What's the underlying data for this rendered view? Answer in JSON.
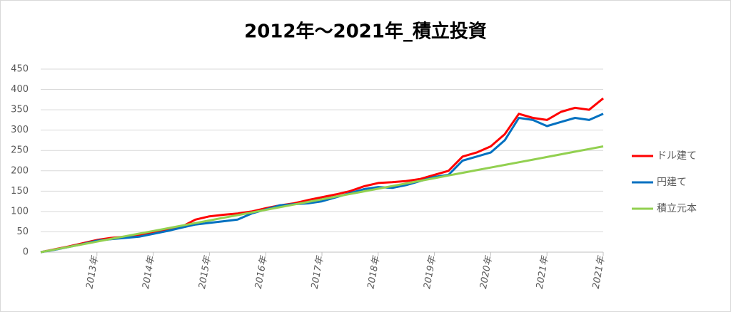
{
  "chart_data": {
    "type": "line",
    "title": "2012年～2021年_積立投資",
    "categories": [
      null,
      null,
      null,
      null,
      "2013年",
      null,
      null,
      null,
      "2014年",
      null,
      null,
      null,
      "2015年",
      null,
      null,
      null,
      "2016年",
      null,
      null,
      null,
      "2017年",
      null,
      null,
      null,
      "2018年",
      null,
      null,
      null,
      "2019年",
      null,
      null,
      null,
      "2020年",
      null,
      null,
      null,
      "2021年",
      null,
      null,
      null,
      "2021年"
    ],
    "series": [
      {
        "name": "ドル建て",
        "color": "#ff0000",
        "values": [
          0,
          7,
          14,
          22,
          30,
          35,
          38,
          42,
          48,
          55,
          62,
          80,
          88,
          92,
          95,
          100,
          108,
          115,
          120,
          128,
          135,
          142,
          150,
          162,
          170,
          172,
          175,
          180,
          190,
          200,
          235,
          245,
          260,
          290,
          340,
          330,
          325,
          345,
          355,
          350,
          378
        ]
      },
      {
        "name": "円建て",
        "color": "#0070c0",
        "values": [
          0,
          6,
          13,
          20,
          28,
          32,
          35,
          38,
          45,
          52,
          60,
          68,
          72,
          76,
          80,
          95,
          105,
          115,
          118,
          120,
          125,
          135,
          145,
          155,
          160,
          158,
          165,
          175,
          185,
          190,
          225,
          235,
          245,
          275,
          330,
          325,
          310,
          320,
          330,
          325,
          340
        ]
      },
      {
        "name": "積立元本",
        "color": "#92d050",
        "values": [
          0,
          6.5,
          13,
          19.5,
          26,
          32.5,
          39,
          45.5,
          52,
          58.5,
          65,
          71.5,
          78,
          84.5,
          91,
          97.5,
          104,
          110.5,
          117,
          123.5,
          130,
          136.5,
          143,
          149.5,
          156,
          162.5,
          169,
          175.5,
          182,
          188.5,
          195,
          201.5,
          208,
          214.5,
          221,
          227.5,
          234,
          240.5,
          247,
          253.5,
          260
        ]
      }
    ],
    "ylim": [
      0,
      450
    ],
    "yticks": [
      0,
      50,
      100,
      150,
      200,
      250,
      300,
      350,
      400,
      450
    ],
    "grid": true,
    "legend": "right"
  }
}
